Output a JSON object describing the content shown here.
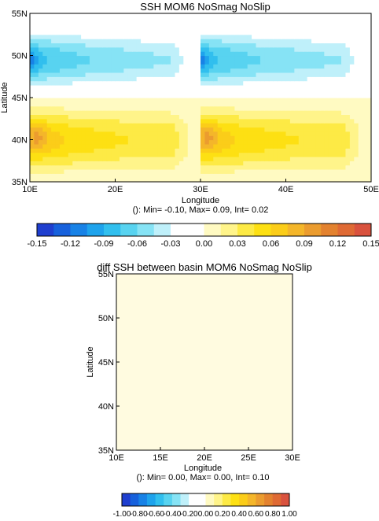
{
  "chart_data": [
    {
      "type": "heatmap",
      "title": "SSH MOM6 NoSmag NoSlip",
      "xlabel": "Longitude",
      "ylabel": "Latitude",
      "xticks": [
        "10E",
        "20E",
        "30E",
        "40E",
        "50E"
      ],
      "yticks": [
        "35N",
        "40N",
        "45N",
        "50N",
        "55N"
      ],
      "xlim": [
        10,
        50
      ],
      "ylim": [
        35,
        55
      ],
      "stats": "(): Min= -0.10, Max= 0.09, Int= 0.02",
      "field": {
        "basins": [
          [
            10,
            30
          ],
          [
            30,
            50
          ]
        ],
        "cells_lat": 20,
        "cells_lon": 20,
        "description_values_min": -0.1,
        "description_values_max": 0.09
      },
      "colorbar": {
        "min": -0.15,
        "max": 0.15,
        "colors": [
          "#1f3fcf",
          "#1761dc",
          "#1882e6",
          "#1ea3ec",
          "#31bfee",
          "#58d3f0",
          "#86e3f5",
          "#bff0fa",
          "#ffffff",
          "#ffffff",
          "#fffac2",
          "#fff48a",
          "#fdea45",
          "#fde013",
          "#fbcd19",
          "#f4b62a",
          "#eb9c2f",
          "#e3822f",
          "#df6a34",
          "#d9523e"
        ],
        "tick_labels": [
          "-0.15",
          "-0.12",
          "-0.09",
          "-0.06",
          "-0.03",
          "0.00",
          "0.03",
          "0.06",
          "0.09",
          "0.12",
          "0.15"
        ]
      }
    },
    {
      "type": "heatmap",
      "title": "diff SSH between basin MOM6 NoSmag NoSlip",
      "xlabel": "Longitude",
      "ylabel": "Latitude",
      "xticks": [
        "10E",
        "15E",
        "20E",
        "25E",
        "30E"
      ],
      "yticks": [
        "35N",
        "40N",
        "45N",
        "50N",
        "55N"
      ],
      "xlim": [
        10,
        30
      ],
      "ylim": [
        35,
        55
      ],
      "stats": "(): Min= 0.00, Max= 0.00, Int= 0.10",
      "fill_color": "#fffbe0",
      "colorbar": {
        "min": -1.0,
        "max": 1.0,
        "colors": [
          "#1f3fcf",
          "#1761dc",
          "#1882e6",
          "#1ea3ec",
          "#31bfee",
          "#58d3f0",
          "#86e3f5",
          "#bff0fa",
          "#ffffff",
          "#ffffff",
          "#fffac2",
          "#fff48a",
          "#fdea45",
          "#fde013",
          "#fbcd19",
          "#f4b62a",
          "#eb9c2f",
          "#e3822f",
          "#df6a34",
          "#d9523e"
        ],
        "tick_labels": [
          "-1.00",
          "-0.80",
          "-0.60",
          "-0.40",
          "-0.20",
          "0.00",
          "0.20",
          "0.40",
          "0.60",
          "0.80",
          "1.00"
        ]
      }
    }
  ]
}
